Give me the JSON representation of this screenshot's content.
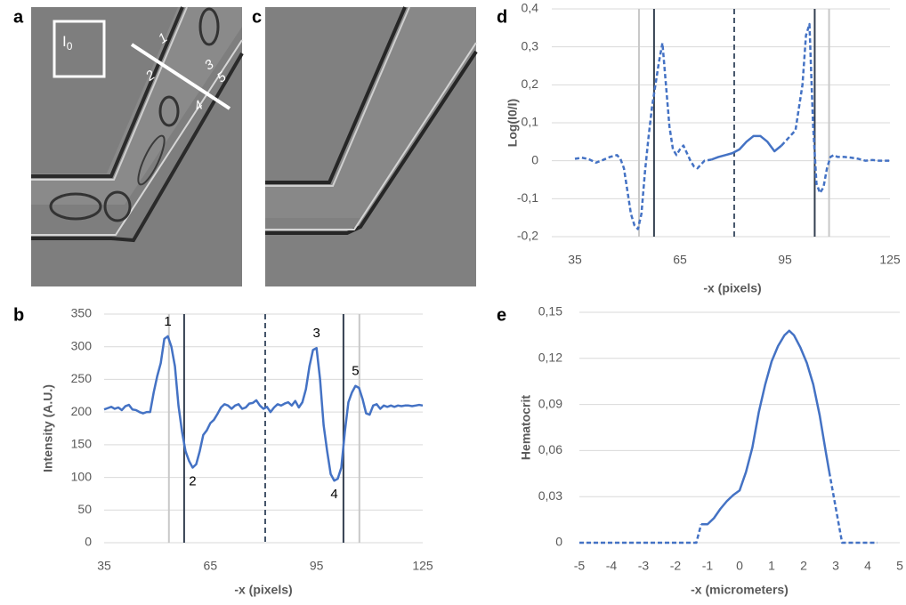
{
  "images": [
    {
      "panel": "a",
      "reference_label": {
        "text": "I",
        "subscript": "0"
      },
      "line_labels": [
        "1",
        "2",
        "3",
        "5",
        "4"
      ]
    },
    {
      "panel": "c"
    }
  ],
  "chart_data": [
    {
      "type": "line",
      "panel": "b",
      "ylabel": "Intensity (A.U.)",
      "xlabel": "-x (pixels)",
      "xlim": [
        35,
        125
      ],
      "xticks": [
        35,
        65,
        95,
        125
      ],
      "ylim": [
        0,
        350
      ],
      "yticks": [
        0,
        50,
        100,
        150,
        200,
        250,
        300,
        350
      ],
      "grid": true,
      "vlines": [
        {
          "x": 53.3,
          "color": "#c8c8c8",
          "linestyle": "solid"
        },
        {
          "x": 57.6,
          "color": "#333f50",
          "linestyle": "solid"
        },
        {
          "x": 80.5,
          "color": "#44546a",
          "linestyle": "dashed"
        },
        {
          "x": 102.6,
          "color": "#333f50",
          "linestyle": "solid"
        },
        {
          "x": 107.1,
          "color": "#c8c8c8",
          "linestyle": "solid"
        }
      ],
      "x": [
        35,
        36,
        37,
        38,
        39,
        40,
        41,
        42,
        43,
        44,
        45,
        46,
        47,
        48,
        49,
        50,
        51,
        52,
        53,
        54,
        55,
        56,
        57,
        58,
        59,
        60,
        61,
        62,
        63,
        64,
        65,
        66,
        67,
        68,
        69,
        70,
        71,
        72,
        73,
        74,
        75,
        76,
        77,
        78,
        79,
        80,
        81,
        82,
        83,
        84,
        85,
        86,
        87,
        88,
        89,
        90,
        91,
        92,
        93,
        94,
        95,
        96,
        97,
        98,
        99,
        100,
        101,
        102,
        103,
        104,
        105,
        106,
        107,
        108,
        109,
        110,
        111,
        112,
        113,
        114,
        115,
        116,
        117,
        118,
        119,
        120,
        121,
        122,
        123,
        124,
        125
      ],
      "series": [
        {
          "color": "#4472c4",
          "linestyle": "solid",
          "values": [
            204,
            206,
            208,
            205,
            207,
            203,
            209,
            211,
            204,
            203,
            200,
            198,
            200,
            200,
            230,
            255,
            275,
            312,
            316,
            300,
            270,
            210,
            170,
            140,
            125,
            115,
            120,
            140,
            165,
            172,
            183,
            188,
            197,
            207,
            212,
            210,
            205,
            210,
            212,
            205,
            207,
            213,
            214,
            218,
            210,
            205,
            208,
            200,
            207,
            212,
            210,
            213,
            215,
            210,
            217,
            207,
            215,
            235,
            270,
            295,
            298,
            250,
            180,
            140,
            105,
            95,
            98,
            115,
            170,
            215,
            230,
            240,
            237,
            220,
            198,
            196,
            210,
            212,
            205,
            210,
            208,
            210,
            208,
            210,
            209,
            210,
            210,
            209,
            210,
            211,
            210
          ]
        }
      ],
      "annotations": [
        {
          "text": "1",
          "x": 53,
          "y": 316,
          "position": "above"
        },
        {
          "text": "2",
          "x": 60,
          "y": 115,
          "position": "below"
        },
        {
          "text": "3",
          "x": 95,
          "y": 298,
          "position": "above"
        },
        {
          "text": "4",
          "x": 100,
          "y": 95,
          "position": "below"
        },
        {
          "text": "5",
          "x": 106,
          "y": 240,
          "position": "above"
        }
      ]
    },
    {
      "type": "line",
      "panel": "d",
      "ylabel": "Log(I0/I)",
      "xlabel": "-x (pixels)",
      "xlim": [
        35,
        125
      ],
      "xticks": [
        35,
        65,
        95,
        125
      ],
      "ylim": [
        -0.2,
        0.4
      ],
      "yticks": [
        {
          "value": 0.4,
          "label": "0,4"
        },
        {
          "value": 0.3,
          "label": "0,3"
        },
        {
          "value": 0.2,
          "label": "0,2"
        },
        {
          "value": 0.1,
          "label": "0,1"
        },
        0,
        {
          "value": -0.1,
          "label": "-0,1"
        },
        {
          "value": -0.2,
          "label": "-0,2"
        }
      ],
      "grid": true,
      "vlines": [
        {
          "x": 53.3,
          "color": "#c8c8c8",
          "linestyle": "solid"
        },
        {
          "x": 57.6,
          "color": "#333f50",
          "linestyle": "solid"
        },
        {
          "x": 80.5,
          "color": "#44546a",
          "linestyle": "dashed"
        },
        {
          "x": 103.5,
          "color": "#333f50",
          "linestyle": "solid"
        },
        {
          "x": 107.6,
          "color": "#c8c8c8",
          "linestyle": "solid"
        }
      ],
      "x": [
        35,
        37,
        39,
        41,
        43,
        45,
        47,
        48,
        49,
        50,
        51,
        52,
        53,
        54,
        55,
        56,
        57,
        58,
        59,
        60,
        61,
        62,
        63,
        64,
        65,
        66,
        67,
        68,
        69,
        70,
        71,
        72,
        74,
        76,
        78,
        80,
        82,
        84,
        86,
        88,
        90,
        92,
        94,
        96,
        98,
        100,
        101,
        102,
        103,
        104,
        105,
        106,
        107,
        108,
        109,
        110,
        112,
        114,
        116,
        118,
        120,
        122,
        124,
        125
      ],
      "series": [
        {
          "color": "#4472c4",
          "linestyle": "dashed",
          "values": [
            0.005,
            0.008,
            0.004,
            -0.005,
            0.002,
            0.01,
            0.015,
            0.005,
            -0.02,
            -0.08,
            -0.14,
            -0.17,
            -0.18,
            -0.14,
            -0.03,
            0.06,
            0.14,
            0.2,
            0.26,
            0.31,
            0.2,
            0.09,
            0.03,
            0.015,
            0.03,
            0.04,
            0.02,
            0.0,
            -0.015,
            -0.02,
            -0.01,
            0.0,
            0.003,
            null,
            null,
            null,
            null,
            null,
            null,
            null,
            null,
            null,
            0.04,
            0.06,
            0.08,
            0.2,
            0.33,
            0.36,
            0.1,
            -0.06,
            -0.085,
            -0.07,
            -0.02,
            0.01,
            0.015,
            0.01,
            0.01,
            0.008,
            0.005,
            0.0,
            0.002,
            0.0,
            0.0,
            0.0
          ]
        },
        {
          "color": "#4472c4",
          "linestyle": "solid",
          "values": [
            null,
            null,
            null,
            null,
            null,
            null,
            null,
            null,
            null,
            null,
            null,
            null,
            null,
            null,
            null,
            null,
            null,
            null,
            null,
            null,
            null,
            null,
            null,
            null,
            null,
            null,
            null,
            null,
            null,
            null,
            null,
            null,
            0.003,
            0.01,
            0.015,
            0.02,
            0.03,
            0.05,
            0.065,
            0.065,
            0.05,
            0.025,
            0.04,
            null,
            null,
            null,
            null,
            null,
            null,
            null,
            null,
            null,
            null,
            null,
            null,
            null,
            null,
            null,
            null,
            null,
            null,
            null,
            null,
            null
          ]
        }
      ]
    },
    {
      "type": "line",
      "panel": "e",
      "ylabel": "Hematocrit",
      "xlabel": "-x (micrometers)",
      "xlim": [
        -5,
        5
      ],
      "xticks": [
        -5,
        -4,
        -3,
        -2,
        -1,
        0,
        1,
        2,
        3,
        4,
        5
      ],
      "ylim": [
        0,
        0.15
      ],
      "yticks": [
        0,
        {
          "value": 0.03,
          "label": "0,03"
        },
        {
          "value": 0.06,
          "label": "0,06"
        },
        {
          "value": 0.09,
          "label": "0,09"
        },
        {
          "value": 0.12,
          "label": "0,12"
        },
        {
          "value": 0.15,
          "label": "0,15"
        }
      ],
      "grid": true,
      "x": [
        -5,
        -1.35,
        -1.2,
        -1.0,
        -0.8,
        -0.6,
        -0.4,
        -0.2,
        0,
        0.2,
        0.4,
        0.6,
        0.8,
        1.0,
        1.2,
        1.4,
        1.55,
        1.7,
        1.9,
        2.1,
        2.3,
        2.5,
        2.7,
        2.8,
        3.2,
        4.3
      ],
      "series": [
        {
          "color": "#4472c4",
          "linestyle": "dashed",
          "values": [
            0,
            0,
            0.012,
            null,
            null,
            null,
            null,
            null,
            null,
            null,
            null,
            null,
            null,
            null,
            null,
            null,
            null,
            null,
            null,
            null,
            null,
            null,
            null,
            0.046,
            0,
            0
          ]
        },
        {
          "color": "#4472c4",
          "linestyle": "solid",
          "values": [
            null,
            null,
            0.012,
            0.012,
            0.016,
            0.022,
            0.027,
            0.031,
            0.034,
            0.046,
            0.062,
            0.085,
            0.103,
            0.118,
            0.128,
            0.135,
            0.138,
            0.135,
            0.127,
            0.117,
            0.103,
            0.083,
            0.058,
            0.046,
            null,
            null
          ]
        }
      ]
    }
  ]
}
